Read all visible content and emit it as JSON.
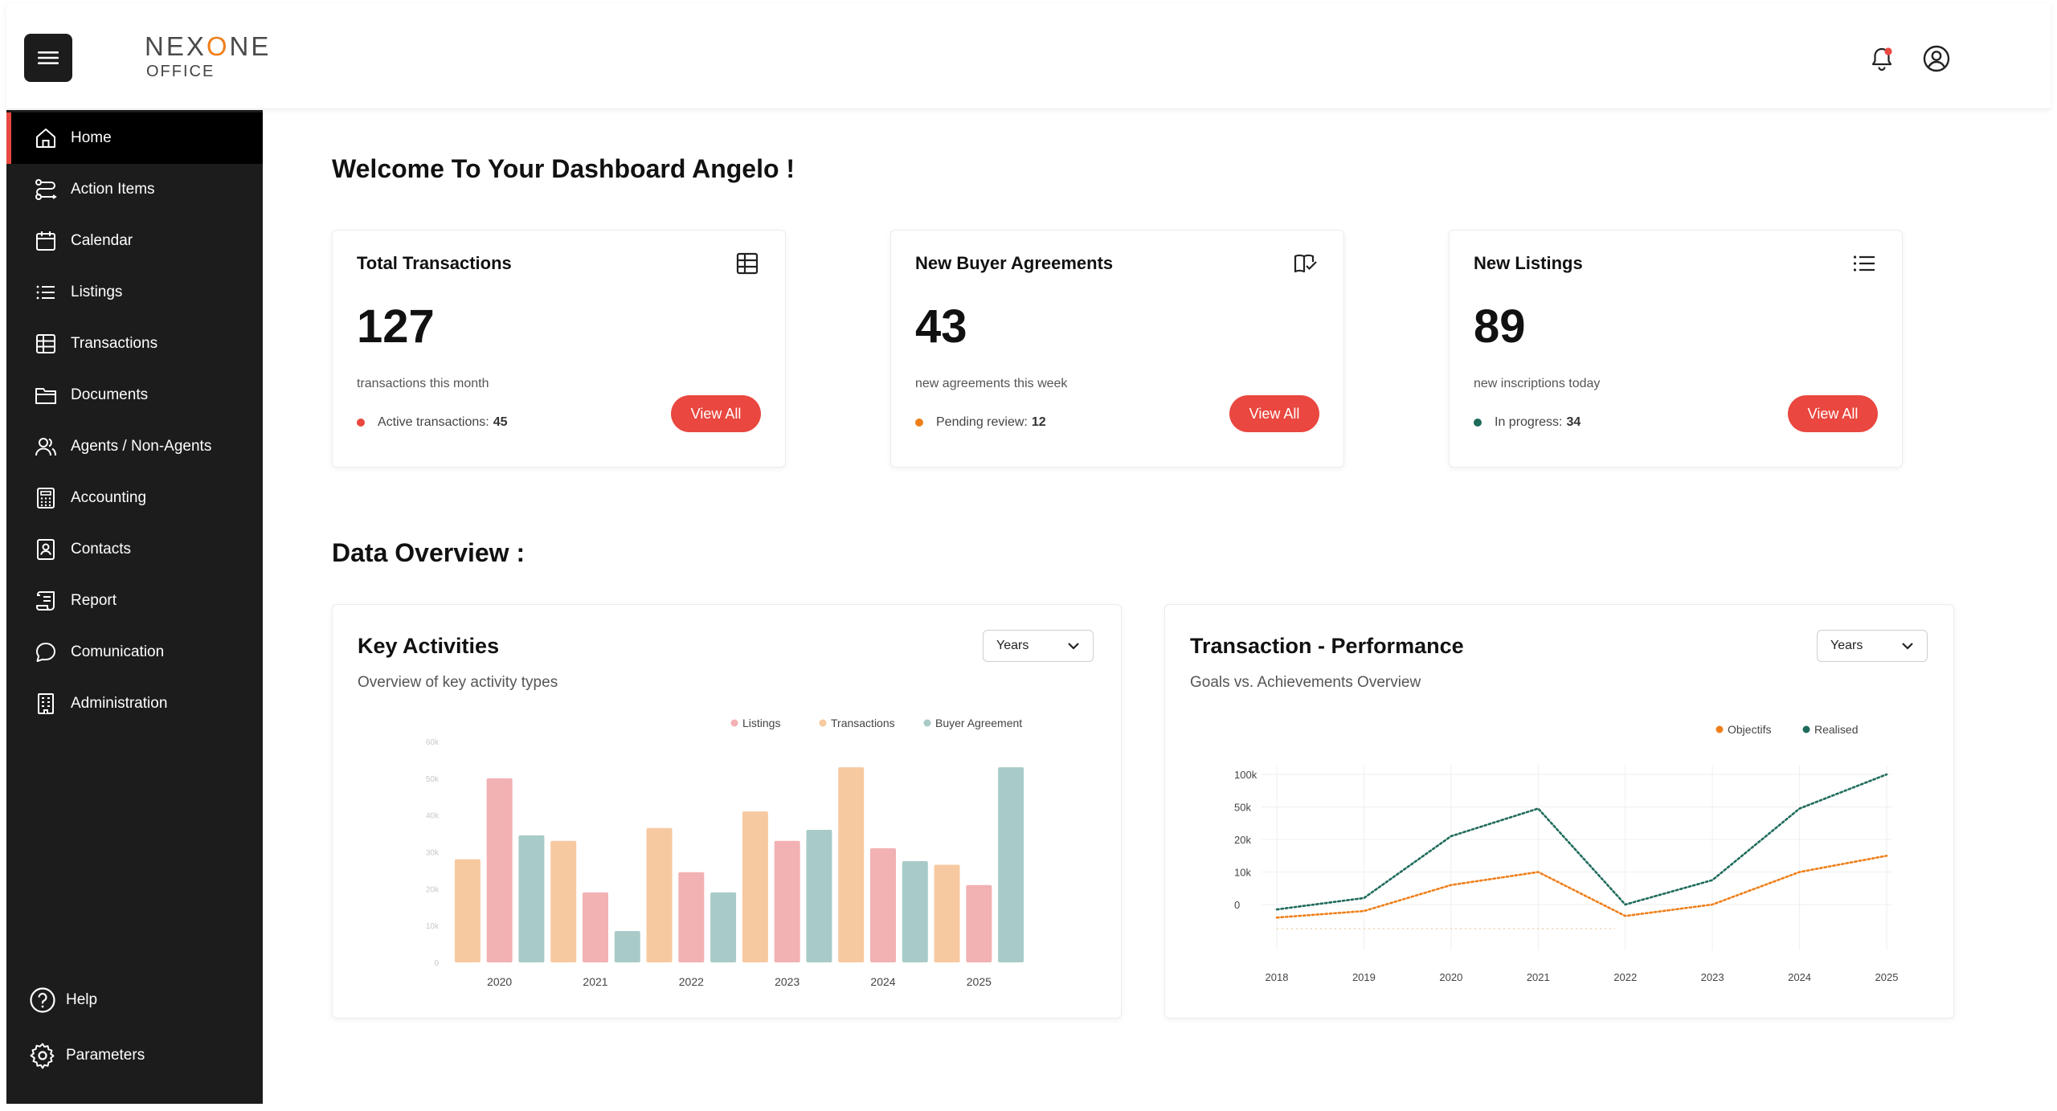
{
  "header": {
    "brand_prefix": "NEX",
    "brand_accent": "O",
    "brand_suffix": "NE",
    "brand_sub": "OFFICE"
  },
  "sidebar": {
    "items": [
      {
        "label": "Home",
        "icon": "home-icon",
        "active": true
      },
      {
        "label": "Action Items",
        "icon": "workflow-icon"
      },
      {
        "label": "Calendar",
        "icon": "calendar-icon"
      },
      {
        "label": "Listings",
        "icon": "list-icon"
      },
      {
        "label": "Transactions",
        "icon": "table-icon"
      },
      {
        "label": "Documents",
        "icon": "folder-icon"
      },
      {
        "label": "Agents / Non-Agents",
        "icon": "users-icon"
      },
      {
        "label": "Accounting",
        "icon": "calculator-icon"
      },
      {
        "label": "Contacts",
        "icon": "contact-card-icon"
      },
      {
        "label": "Report",
        "icon": "scroll-icon"
      },
      {
        "label": "Comunication",
        "icon": "chat-icon"
      },
      {
        "label": "Administration",
        "icon": "building-icon"
      }
    ],
    "help_label": "Help",
    "parameters_label": "Parameters"
  },
  "main": {
    "welcome": "Welcome To Your Dashboard Angelo !",
    "cards": [
      {
        "title": "Total Transactions",
        "value": "127",
        "subtitle": "transactions this month",
        "status_label": "Active transactions:",
        "status_value": "45",
        "status_color": "#e9473f",
        "button": "View All",
        "icon": "table-icon"
      },
      {
        "title": "New Buyer Agreements",
        "value": "43",
        "subtitle": "new agreements this week",
        "status_label": "Pending review:",
        "status_value": "12",
        "status_color": "#ef7f1a",
        "button": "View All",
        "icon": "book-check-icon"
      },
      {
        "title": "New Listings",
        "value": "89",
        "subtitle": "new inscriptions today",
        "status_label": "In progress:",
        "status_value": "34",
        "status_color": "#1f6b5c",
        "button": "View All",
        "icon": "list-icon"
      }
    ],
    "section_title": "Data Overview :"
  },
  "panels": {
    "key_activities": {
      "title": "Key Activities",
      "subtitle": "Overview of key activity types",
      "select_value": "Years"
    },
    "performance": {
      "title": "Transaction - Performance",
      "subtitle": "Goals vs. Achievements Overview",
      "select_value": "Years"
    }
  },
  "colors": {
    "accent": "#e9473f",
    "brand": "#ef7f1a",
    "sidebar": "#1c1c1c"
  },
  "chart_data": [
    {
      "type": "bar",
      "categories": [
        "2020",
        "2021",
        "2022",
        "2023",
        "2024",
        "2025"
      ],
      "series": [
        {
          "name": "Listings",
          "color": "#f2b1b3",
          "values": [
            50,
            19,
            24.5,
            33,
            31,
            21
          ]
        },
        {
          "name": "Transactions",
          "color": "#f7c9a0",
          "values": [
            28,
            33,
            36.5,
            41,
            53,
            26.5
          ]
        },
        {
          "name": "Buyer Agreement",
          "color": "#a8cbc8",
          "values": [
            34.5,
            8.5,
            19,
            36,
            27.5,
            53
          ]
        }
      ],
      "interleave": [
        [
          "Transactions",
          0
        ],
        [
          "Listings",
          0
        ],
        [
          "Buyer Agreement",
          0
        ],
        [
          "Transactions",
          1
        ],
        [
          "Listings",
          1
        ],
        [
          "Buyer Agreement",
          1
        ],
        [
          "Transactions",
          2
        ],
        [
          "Listings",
          2
        ],
        [
          "Buyer Agreement",
          2
        ],
        [
          "Transactions",
          3
        ],
        [
          "Listings",
          3
        ],
        [
          "Buyer Agreement",
          3
        ],
        [
          "Transactions",
          4
        ],
        [
          "Listings",
          4
        ],
        [
          "Buyer Agreement",
          4
        ],
        [
          "Transactions",
          5
        ],
        [
          "Listings",
          5
        ],
        [
          "Buyer Agreement",
          5
        ]
      ],
      "yticks": [
        "0",
        "10k",
        "20k",
        "30k",
        "40k",
        "50k",
        "60k"
      ],
      "ylim": [
        0,
        60
      ],
      "legend_position": "top-right"
    },
    {
      "type": "line",
      "x": [
        "2018",
        "2019",
        "2020",
        "2021",
        "2022",
        "2023",
        "2024",
        "2025"
      ],
      "yticks": [
        "0",
        "10k",
        "20k",
        "50k",
        "100k"
      ],
      "series": [
        {
          "name": "Objectifs",
          "color": "#ef7f1a",
          "values": [
            -0.4,
            -0.2,
            0.6,
            1.0,
            -0.35,
            0.0,
            1.0,
            1.5
          ]
        },
        {
          "name": "Realised",
          "color": "#1f6b5c",
          "values": [
            -0.15,
            0.2,
            2.1,
            2.95,
            0.0,
            0.75,
            2.95,
            4.0
          ]
        }
      ],
      "y_scale": "categorical ticks, index units",
      "legend_position": "top-right"
    }
  ]
}
